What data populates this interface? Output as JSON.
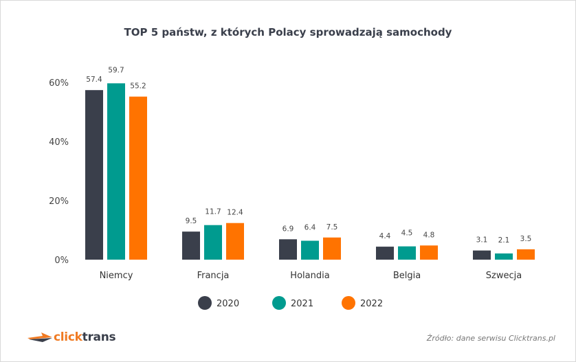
{
  "chart_data": {
    "type": "bar",
    "title": "TOP 5 państw, z których Polacy sprowadzają samochody",
    "categories": [
      "Niemcy",
      "Francja",
      "Holandia",
      "Belgia",
      "Szwecja"
    ],
    "series": [
      {
        "name": "2020",
        "color": "#3a3f4b",
        "values": [
          57.4,
          9.5,
          6.9,
          4.4,
          3.1
        ]
      },
      {
        "name": "2021",
        "color": "#009b8f",
        "values": [
          59.7,
          11.7,
          6.4,
          4.5,
          2.1
        ]
      },
      {
        "name": "2022",
        "color": "#ff7300",
        "values": [
          55.2,
          12.4,
          7.5,
          4.8,
          3.5
        ]
      }
    ],
    "yticks": [
      "0%",
      "20%",
      "40%",
      "60%"
    ],
    "ytick_values": [
      0,
      20,
      40,
      60
    ],
    "ylim": [
      0,
      62
    ],
    "grid": false,
    "legend": "bottom",
    "data_labels": true
  },
  "logo": {
    "part1": "click",
    "part2": "trans",
    "color1": "#f07a22",
    "color2": "#3a3f4b"
  },
  "source": "Źródło: dane serwisu Clicktrans.pl"
}
